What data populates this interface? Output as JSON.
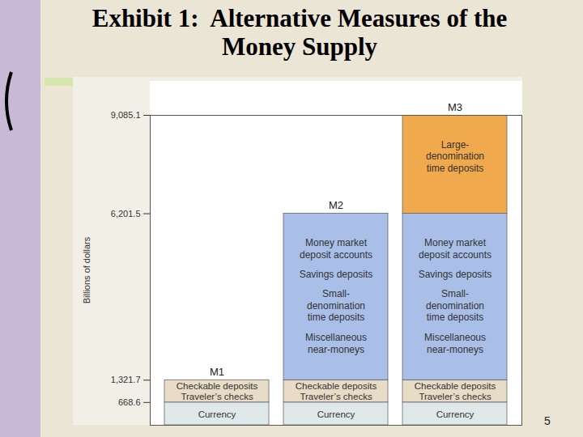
{
  "chart_data": {
    "type": "bar",
    "title": "Exhibit 1:  Alternative Measures of the\nMoney Supply",
    "annotations": [
      "5"
    ],
    "ylabel": "Billions of dollars",
    "stacked": true,
    "grid": false,
    "tick_labels": "y",
    "categories": [
      "M1",
      "M2",
      "M3"
    ],
    "ylim": [
      0,
      9085.1
    ],
    "yticks": [
      668.6,
      {
        "value": 1321.7,
        "label": "1,321.7"
      },
      {
        "value": 6201.5,
        "label": "6,201.5"
      },
      {
        "value": 9085.1,
        "label": "9,085.1"
      }
    ],
    "series": [
      {
        "items": [
          [
            "Currency"
          ]
        ],
        "color": "#dfe9ea",
        "values": [
          668.6,
          668.6,
          668.6
        ]
      },
      {
        "items": [
          [
            "Checkable deposits",
            "Traveler’s checks"
          ]
        ],
        "color": "#e9dcc6",
        "values": [
          653.1,
          653.1,
          653.1
        ]
      },
      {
        "items": [
          [
            "Money market",
            "deposit accounts"
          ],
          [
            "Savings deposits"
          ],
          [
            "Small-",
            "denomination",
            "time deposits"
          ],
          [
            "Miscellaneous",
            "near-moneys"
          ]
        ],
        "color": "#a9bfe8",
        "values": [
          null,
          4879.8,
          4879.8
        ]
      },
      {
        "items": [
          [
            "Large-",
            "denomination",
            "time deposits"
          ]
        ],
        "color": "#f0a94c",
        "values": [
          null,
          null,
          2883.6
        ]
      }
    ]
  }
}
